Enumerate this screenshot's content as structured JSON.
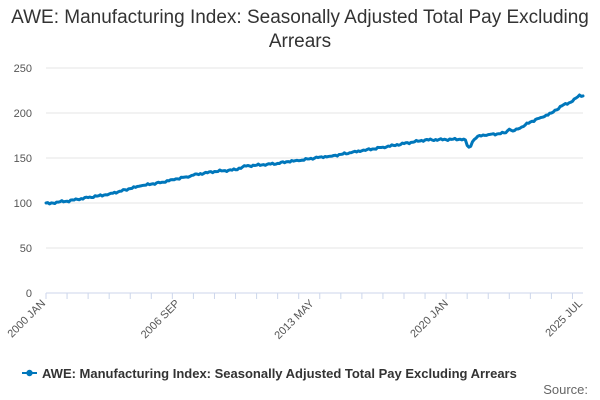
{
  "chart_data": {
    "type": "line",
    "title": "AWE: Manufacturing Index: Seasonally Adjusted Total Pay Excluding Arrears",
    "xlabel": "",
    "ylabel": "",
    "ylim": [
      0,
      250
    ],
    "y_ticks": [
      "0",
      "50",
      "100",
      "150",
      "200",
      "250"
    ],
    "x_ticks": [
      "2000 JAN",
      "2006 SEP",
      "2013 MAY",
      "2020 JAN",
      "2025 JUL"
    ],
    "x_range_months": [
      0,
      306
    ],
    "grid": true,
    "legend_position": "bottom",
    "series": [
      {
        "name": "AWE: Manufacturing Index: Seasonally Adjusted Total Pay Excluding Arrears",
        "color": "#0077bb",
        "points": [
          [
            0,
            100
          ],
          [
            2,
            99
          ],
          [
            6,
            101
          ],
          [
            12,
            102
          ],
          [
            18,
            104
          ],
          [
            24,
            106
          ],
          [
            30,
            108
          ],
          [
            36,
            110
          ],
          [
            42,
            113
          ],
          [
            48,
            116
          ],
          [
            54,
            119
          ],
          [
            60,
            121
          ],
          [
            66,
            123
          ],
          [
            72,
            126
          ],
          [
            80,
            129
          ],
          [
            84,
            131
          ],
          [
            90,
            133
          ],
          [
            96,
            135
          ],
          [
            102,
            136
          ],
          [
            108,
            137
          ],
          [
            112,
            140
          ],
          [
            114,
            141
          ],
          [
            120,
            142
          ],
          [
            126,
            143
          ],
          [
            132,
            144
          ],
          [
            138,
            146
          ],
          [
            144,
            147
          ],
          [
            150,
            149
          ],
          [
            156,
            151
          ],
          [
            162,
            152
          ],
          [
            168,
            154
          ],
          [
            174,
            156
          ],
          [
            180,
            158
          ],
          [
            186,
            160
          ],
          [
            192,
            162
          ],
          [
            198,
            164
          ],
          [
            204,
            166
          ],
          [
            210,
            168
          ],
          [
            216,
            170
          ],
          [
            238,
            171
          ],
          [
            239,
            170
          ],
          [
            240,
            164
          ],
          [
            241,
            162
          ],
          [
            242,
            163
          ],
          [
            243,
            168
          ],
          [
            245,
            172
          ],
          [
            247,
            175
          ],
          [
            252,
            176
          ],
          [
            258,
            177
          ],
          [
            262,
            178
          ],
          [
            264,
            182
          ],
          [
            266,
            180
          ],
          [
            270,
            183
          ],
          [
            276,
            190
          ],
          [
            282,
            195
          ],
          [
            288,
            200
          ],
          [
            294,
            208
          ],
          [
            300,
            213
          ],
          [
            303,
            218
          ],
          [
            304,
            220
          ],
          [
            306,
            219
          ]
        ]
      }
    ]
  },
  "source_label": "Source:"
}
